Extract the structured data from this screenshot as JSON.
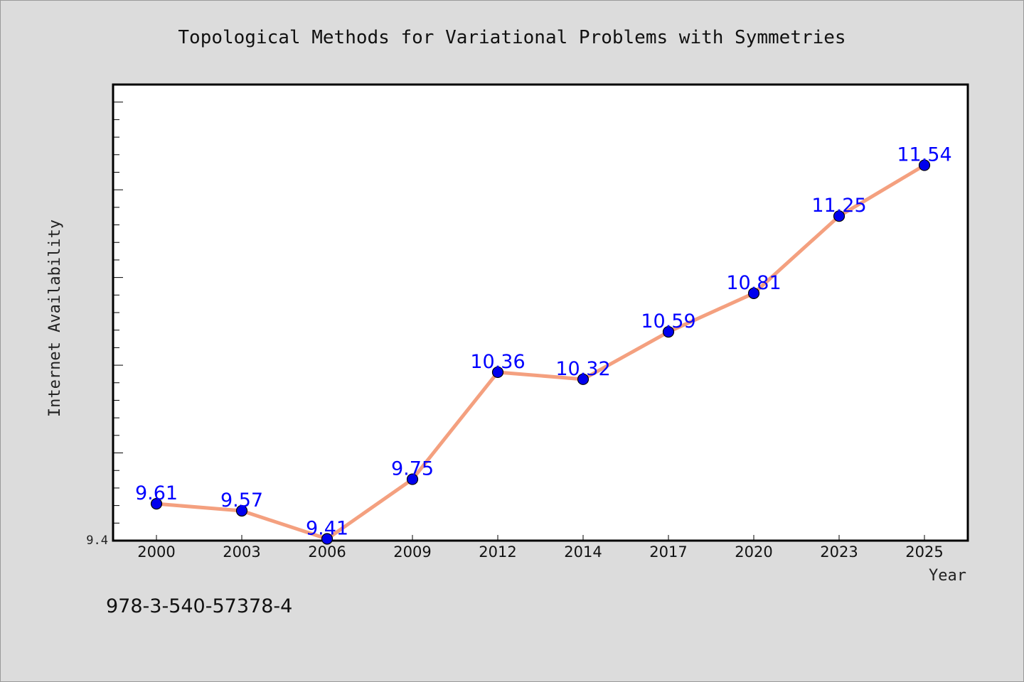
{
  "chart_data": {
    "type": "line",
    "title": "Topological Methods for Variational Problems with Symmetries",
    "xlabel": "Year",
    "ylabel": "Internet Availability",
    "categories": [
      "2000",
      "2003",
      "2006",
      "2009",
      "2012",
      "2014",
      "2017",
      "2020",
      "2023",
      "2025"
    ],
    "series": [
      {
        "values": [
          9.61,
          9.57,
          9.41,
          9.75,
          10.36,
          10.32,
          10.59,
          10.81,
          11.25,
          11.54
        ]
      }
    ],
    "data_labels": [
      "9.61",
      "9.57",
      "9.41",
      "9.75",
      "10.36",
      "10.32",
      "10.59",
      "10.81",
      "11.25",
      "11.54"
    ],
    "ylim": [
      9.4,
      12.0
    ],
    "y_tick_labels": [
      "9.4"
    ],
    "grid": false,
    "colors": {
      "line": "#f4a07f",
      "marker": "#0000ee",
      "data_label": "#0000ff",
      "plot_bg": "#ffffff",
      "page_bg": "#dcdcdc"
    }
  },
  "footer": {
    "isbn": "978-3-540-57378-4"
  }
}
